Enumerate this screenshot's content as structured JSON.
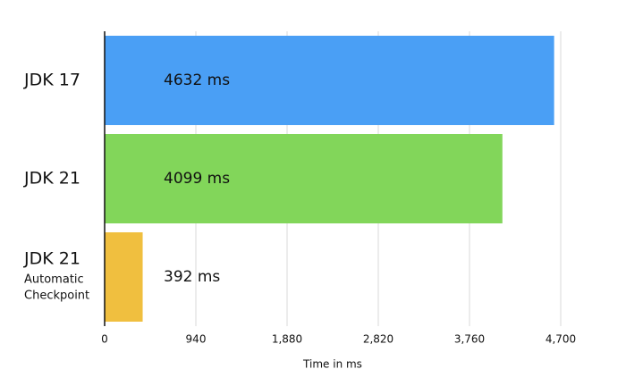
{
  "chart_data": {
    "type": "bar",
    "orientation": "horizontal",
    "categories": [
      "JDK 17",
      "JDK 21",
      "JDK 21"
    ],
    "category_notes": [
      null,
      null,
      [
        "Automatic",
        "Checkpoint"
      ]
    ],
    "values": [
      4632,
      4099,
      392
    ],
    "value_labels": [
      "4632 ms",
      "4099 ms",
      "392 ms"
    ],
    "colors": [
      "#4a9ff5",
      "#82d65a",
      "#f0bf3f"
    ],
    "xlabel": "Time in ms",
    "xlim": [
      0,
      4700
    ],
    "xticks": [
      0,
      940,
      {
        "value": 1880,
        "label": "1,880"
      },
      {
        "value": 2820,
        "label": "2,820"
      },
      {
        "value": 3760,
        "label": "3,760"
      },
      {
        "value": 4700,
        "label": "4,700"
      }
    ],
    "grid": true
  }
}
